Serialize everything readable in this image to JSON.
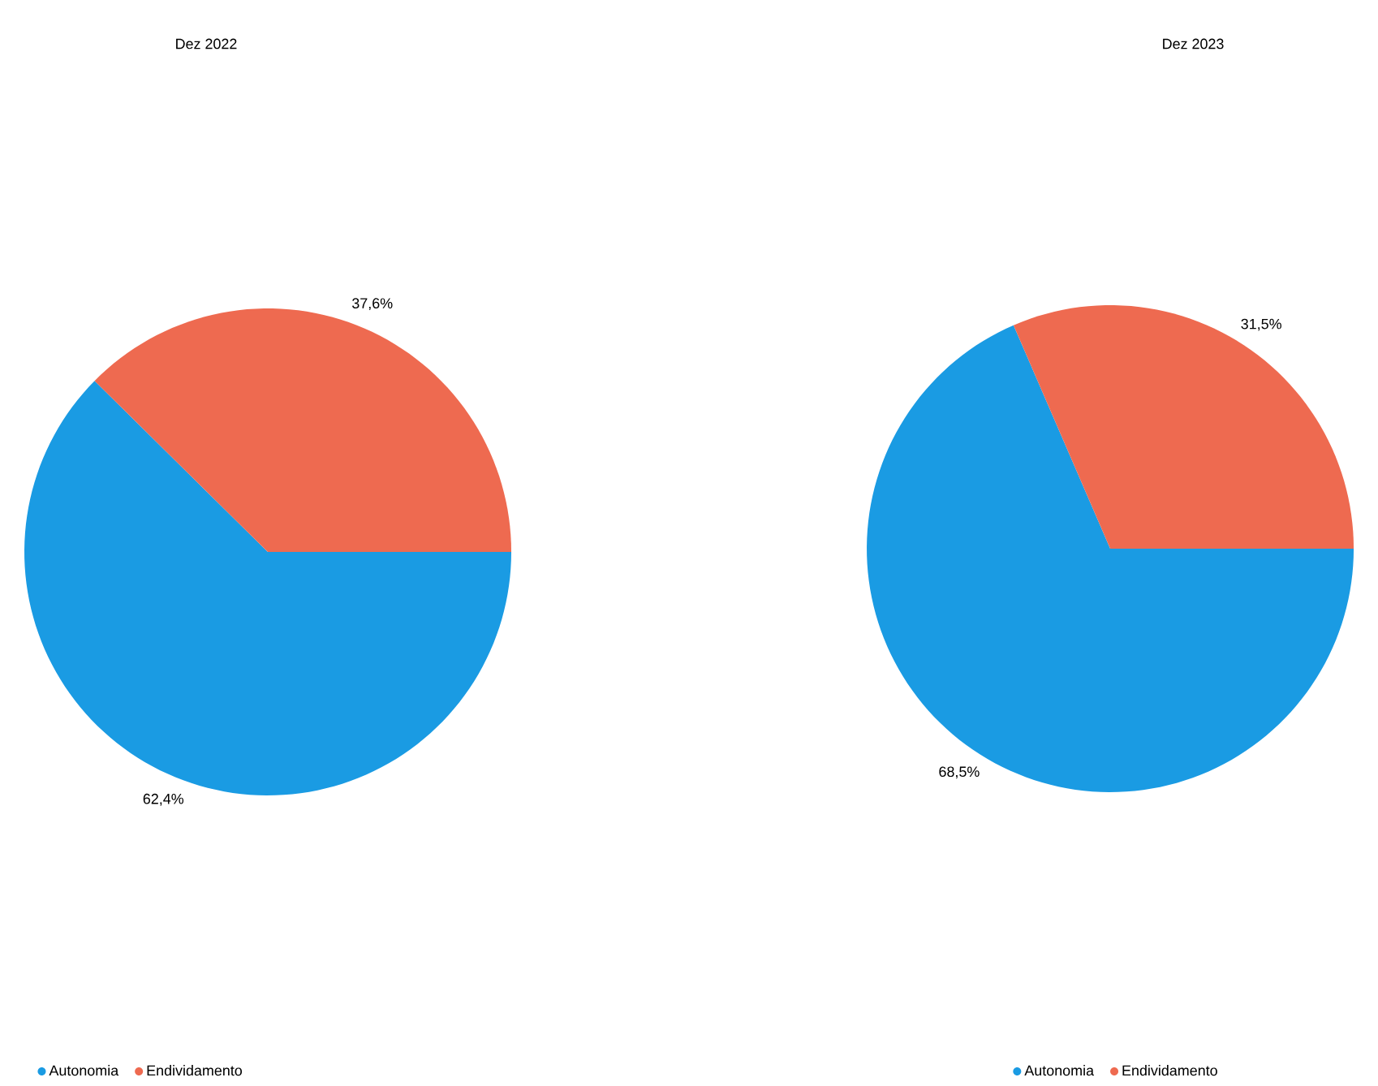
{
  "chart_data": [
    {
      "type": "pie",
      "title": "Dez 2022",
      "categories": [
        "Autonomia",
        "Endividamento"
      ],
      "values": [
        62.4,
        37.6
      ],
      "colors": [
        "#1a9be3",
        "#ee6a50"
      ],
      "value_labels": [
        "62,4%",
        "37,6%"
      ],
      "legend": "bottom left"
    },
    {
      "type": "pie",
      "title": "Dez 2023",
      "categories": [
        "Autonomia",
        "Endividamento"
      ],
      "values": [
        68.5,
        31.5
      ],
      "colors": [
        "#1a9be3",
        "#ee6a50"
      ],
      "value_labels": [
        "68,5%",
        "31,5%"
      ],
      "legend": "bottom"
    }
  ]
}
